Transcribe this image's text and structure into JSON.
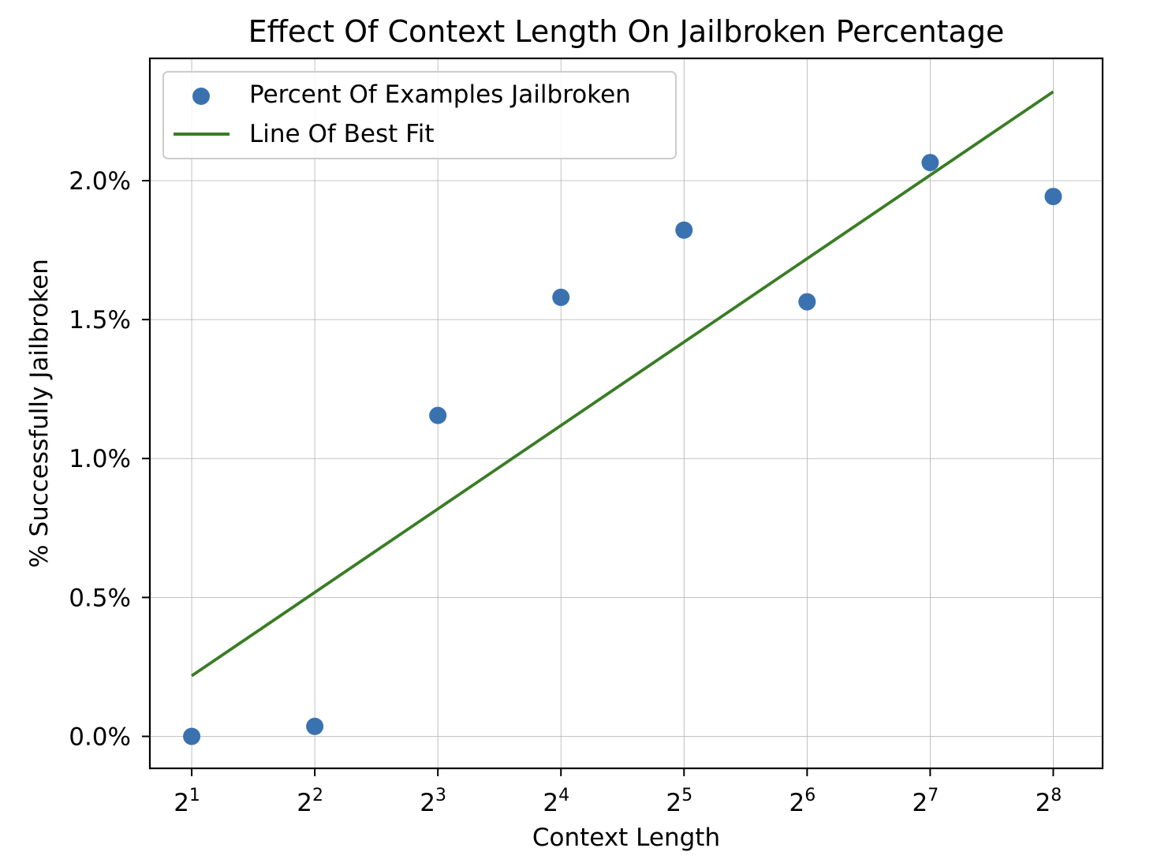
{
  "chart_data": {
    "type": "scatter",
    "title": "Effect Of Context Length On Jailbroken Percentage",
    "xlabel": "Context Length",
    "ylabel": "% Successfully Jailbroken",
    "x_scale": "log2",
    "x_ticks": [
      {
        "value": 2,
        "base": "2",
        "exp": "1"
      },
      {
        "value": 4,
        "base": "2",
        "exp": "2"
      },
      {
        "value": 8,
        "base": "2",
        "exp": "3"
      },
      {
        "value": 16,
        "base": "2",
        "exp": "4"
      },
      {
        "value": 32,
        "base": "2",
        "exp": "5"
      },
      {
        "value": 64,
        "base": "2",
        "exp": "6"
      },
      {
        "value": 128,
        "base": "2",
        "exp": "7"
      },
      {
        "value": 256,
        "base": "2",
        "exp": "8"
      }
    ],
    "y_ticks": [
      {
        "value": 0.0,
        "label": "0.0%"
      },
      {
        "value": 0.5,
        "label": "0.5%"
      },
      {
        "value": 1.0,
        "label": "1.0%"
      },
      {
        "value": 1.5,
        "label": "1.5%"
      },
      {
        "value": 2.0,
        "label": "2.0%"
      }
    ],
    "xlim": [
      1.58,
      338
    ],
    "ylim": [
      -0.115,
      2.44
    ],
    "grid": true,
    "legend_position": "upper-left",
    "series": [
      {
        "name": "Percent Of Examples Jailbroken",
        "kind": "scatter",
        "color": "#3a72b0",
        "x": [
          2,
          4,
          8,
          16,
          32,
          64,
          128,
          256
        ],
        "y": [
          0.0,
          0.036,
          1.155,
          1.58,
          1.822,
          1.564,
          2.065,
          1.943
        ]
      },
      {
        "name": "Line Of Best Fit",
        "kind": "line",
        "color": "#3a7d24",
        "x": [
          2,
          256
        ],
        "y": [
          0.218,
          2.32
        ]
      }
    ]
  }
}
